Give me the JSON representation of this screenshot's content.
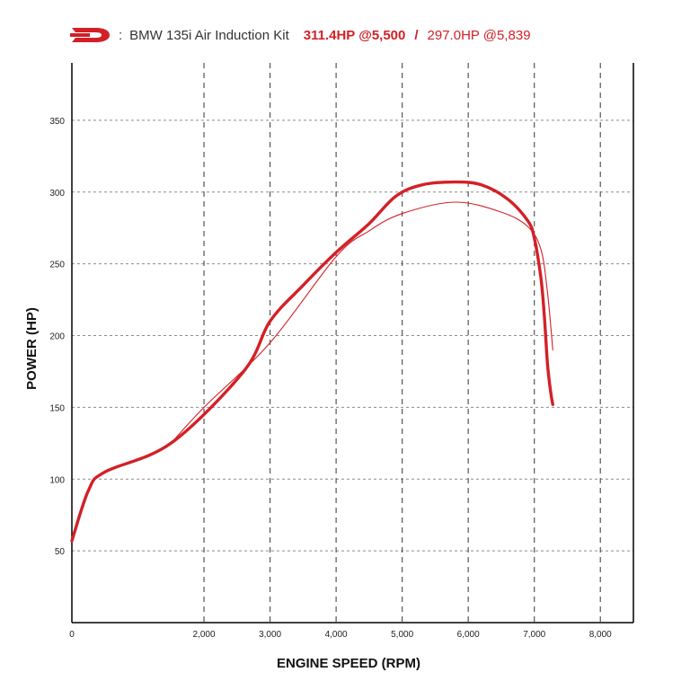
{
  "header": {
    "separator": ":",
    "kit_name": "BMW 135i Air Induction Kit",
    "hp_primary": "311.4HP @5,500",
    "divider": "/",
    "hp_secondary": "297.0HP @5,839"
  },
  "colors": {
    "accent": "#d32027",
    "grid": "#8c8c8c",
    "axis": "#000000"
  },
  "chart_data": {
    "type": "line",
    "xlabel": "ENGINE SPEED (RPM)",
    "ylabel": "POWER (HP)",
    "xlim": [
      0,
      8500
    ],
    "ylim": [
      0,
      390
    ],
    "xticks": [
      0,
      2000,
      3000,
      4000,
      5000,
      6000,
      7000,
      8000
    ],
    "xtick_labels": [
      "0",
      "2,000",
      "3,000",
      "4,000",
      "5,000",
      "6,000",
      "7,000",
      "8,000"
    ],
    "yticks": [
      50,
      100,
      150,
      200,
      250,
      300,
      350
    ],
    "ytick_labels": [
      "50",
      "100",
      "150",
      "200",
      "250",
      "300",
      "350"
    ],
    "grid": true,
    "series": [
      {
        "name": "311.4HP @5,500",
        "style": "thick",
        "points": [
          [
            0,
            57
          ],
          [
            250,
            92
          ],
          [
            500,
            105
          ],
          [
            1500,
            125
          ],
          [
            2600,
            175
          ],
          [
            3000,
            210
          ],
          [
            3500,
            235
          ],
          [
            4000,
            258
          ],
          [
            4500,
            278
          ],
          [
            4900,
            297
          ],
          [
            5300,
            305
          ],
          [
            5800,
            307
          ],
          [
            6200,
            305
          ],
          [
            6600,
            295
          ],
          [
            6900,
            280
          ],
          [
            7000,
            268
          ],
          [
            7100,
            240
          ],
          [
            7150,
            215
          ],
          [
            7200,
            180
          ],
          [
            7250,
            160
          ],
          [
            7280,
            152
          ]
        ]
      },
      {
        "name": "297.0HP @5,839",
        "style": "thin",
        "points": [
          [
            1500,
            125
          ],
          [
            2000,
            150
          ],
          [
            3000,
            195
          ],
          [
            4000,
            255
          ],
          [
            4500,
            273
          ],
          [
            5000,
            285
          ],
          [
            5800,
            293
          ],
          [
            6500,
            286
          ],
          [
            6900,
            276
          ],
          [
            7100,
            260
          ],
          [
            7200,
            230
          ],
          [
            7280,
            190
          ]
        ]
      }
    ]
  }
}
